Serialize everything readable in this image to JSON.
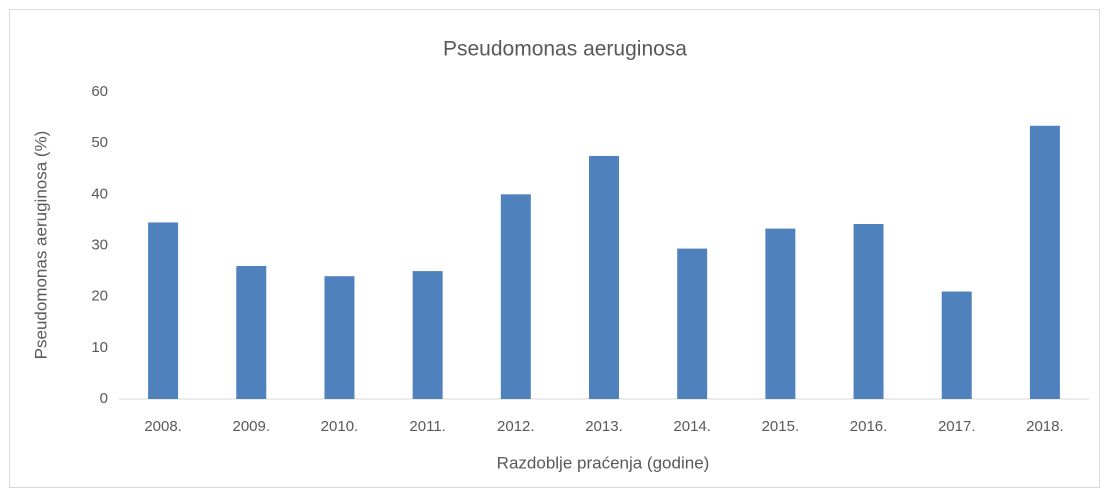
{
  "chart_data": {
    "type": "bar",
    "title": "Pseudomonas aeruginosa",
    "x_label": "Razdoblje praćenja (godine)",
    "y_label": "Pseudomonas aeruginosa (%)",
    "categories": [
      "2008.",
      "2009.",
      "2010.",
      "2011.",
      "2012.",
      "2013.",
      "2014.",
      "2015.",
      "2016.",
      "2017.",
      "2018."
    ],
    "values": [
      34.5,
      26,
      24,
      25,
      40,
      47.5,
      29.4,
      33.3,
      34.2,
      21,
      53.4
    ],
    "color": "#4f81bd",
    "ylim": [
      0,
      60
    ],
    "yticks": [
      0,
      10,
      20,
      30,
      40,
      50,
      60
    ],
    "grid": false
  }
}
